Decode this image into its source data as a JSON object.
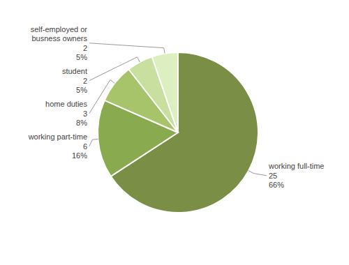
{
  "chart_data": {
    "type": "pie",
    "categories": [
      "working full-time",
      "working part-time",
      "home duties",
      "student",
      "self-employed or\nbusness owners"
    ],
    "values": [
      25,
      6,
      3,
      2,
      2
    ],
    "percentages": [
      {
        "value": 66,
        "label": "66%"
      },
      {
        "value": 16,
        "label": "16%"
      },
      {
        "value": 8,
        "label": "8%"
      },
      {
        "value": 5,
        "label": "5%"
      },
      {
        "value": 5,
        "label": "5%"
      }
    ],
    "colors": [
      "#7a8f45",
      "#8aaa50",
      "#a8c46a",
      "#c8dfa0",
      "#ddeec0"
    ],
    "data_labels": true
  }
}
